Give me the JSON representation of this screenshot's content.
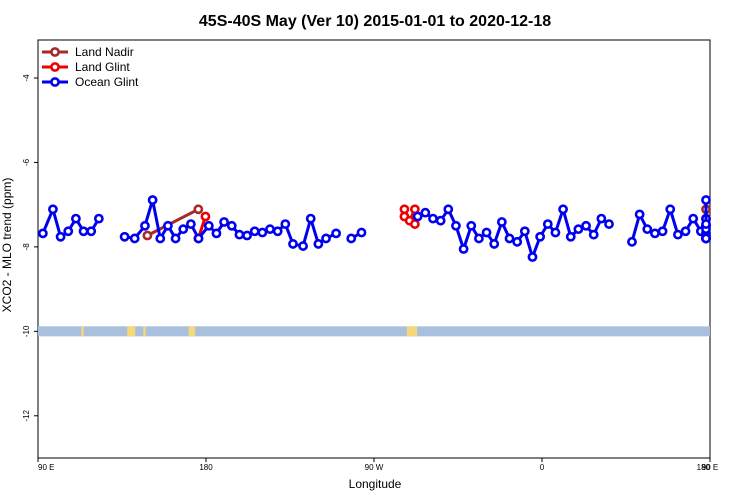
{
  "chart_data": {
    "type": "line",
    "title": "45S-40S May (Ver 10)   2015-01-01 to 2020-12-18",
    "xlabel": "Longitude",
    "ylabel": "XCO2 - MLO trend (ppm)",
    "xlim": [
      90,
      450
    ],
    "ylim": [
      -13.0,
      -3.1
    ],
    "x_ticks": [
      {
        "value": 90,
        "label": "90 E"
      },
      {
        "value": 180,
        "label": "180"
      },
      {
        "value": 270,
        "label": "90 W"
      },
      {
        "value": 360,
        "label": "0"
      },
      {
        "value": 450,
        "label": "90 E"
      },
      {
        "value": 540,
        "label": "180"
      }
    ],
    "y_ticks": [
      {
        "value": -4,
        "label": "-4"
      },
      {
        "value": -6,
        "label": "-6"
      },
      {
        "value": -8,
        "label": "-8"
      },
      {
        "value": -10,
        "label": "-10"
      },
      {
        "value": -12,
        "label": "-12"
      }
    ],
    "legend_position": "top-left",
    "grid": false,
    "land_ocean_band": {
      "y": -10,
      "ocean_color": "#a8bfdd",
      "land_color": "#f6d77a",
      "land_ranges": [
        [
          146.4,
          147.7
        ],
        [
          170.7,
          174.2
        ],
        [
          287.6,
          293.1
        ],
        [
          473.2,
          474.5
        ],
        [
          497.8,
          502.1
        ]
      ]
    },
    "series": [
      {
        "name": "Land Nadir",
        "color": "#a52a2a",
        "segments": [
          [
            [
              148.6,
              -7.73
            ],
            [
              175.9,
              -7.11
            ]
          ],
          [
            [
              487.5,
              -7.11
            ]
          ]
        ]
      },
      {
        "name": "Land Glint",
        "color": "#ee0000",
        "segments": [
          [
            [
              175.9,
              -7.8
            ],
            [
              179.7,
              -7.28
            ]
          ],
          [
            [
              286.3,
              -7.11
            ],
            [
              286.3,
              -7.28
            ],
            [
              289.1,
              -7.38
            ],
            [
              291.9,
              -7.11
            ],
            [
              291.9,
              -7.46
            ]
          ],
          [
            [
              476.6,
              -7.73
            ]
          ],
          [
            [
              488.8,
              -7.8
            ],
            [
              490.2,
              -7.33
            ]
          ]
        ]
      },
      {
        "name": "Ocean Glint",
        "color": "#0000ee",
        "segments": [
          [
            [
              92.6,
              -7.68
            ],
            [
              98.0,
              -7.11
            ],
            [
              102.1,
              -7.76
            ],
            [
              106.2,
              -7.63
            ],
            [
              110.3,
              -7.33
            ],
            [
              114.4,
              -7.63
            ],
            [
              118.5,
              -7.63
            ],
            [
              122.6,
              -7.33
            ]
          ],
          [
            [
              136.4,
              -7.76
            ],
            [
              141.8,
              -7.8
            ],
            [
              147.3,
              -7.5
            ],
            [
              151.4,
              -6.89
            ],
            [
              155.5,
              -7.8
            ],
            [
              159.6,
              -7.5
            ],
            [
              163.7,
              -7.8
            ],
            [
              167.8,
              -7.58
            ],
            [
              171.9,
              -7.46
            ],
            [
              176.0,
              -7.8
            ],
            [
              181.5,
              -7.5
            ],
            [
              185.6,
              -7.68
            ],
            [
              189.7,
              -7.41
            ],
            [
              193.8,
              -7.5
            ],
            [
              197.9,
              -7.71
            ],
            [
              202.0,
              -7.73
            ],
            [
              206.1,
              -7.63
            ],
            [
              210.2,
              -7.66
            ],
            [
              214.3,
              -7.58
            ],
            [
              218.4,
              -7.63
            ],
            [
              222.5,
              -7.46
            ],
            [
              226.6,
              -7.93
            ],
            [
              232.0,
              -7.98
            ],
            [
              236.1,
              -7.33
            ],
            [
              240.2,
              -7.93
            ],
            [
              244.3,
              -7.8
            ],
            [
              249.7,
              -7.68
            ]
          ],
          [
            [
              257.8,
              -7.8
            ],
            [
              263.3,
              -7.66
            ]
          ],
          [
            [
              293.4,
              -7.28
            ],
            [
              297.5,
              -7.19
            ],
            [
              301.6,
              -7.33
            ],
            [
              305.7,
              -7.38
            ],
            [
              309.8,
              -7.11
            ],
            [
              313.9,
              -7.5
            ],
            [
              318.0,
              -8.05
            ],
            [
              322.1,
              -7.5
            ],
            [
              326.2,
              -7.8
            ],
            [
              330.3,
              -7.66
            ],
            [
              334.4,
              -7.93
            ],
            [
              338.5,
              -7.41
            ],
            [
              342.6,
              -7.8
            ],
            [
              346.7,
              -7.88
            ],
            [
              350.8,
              -7.63
            ],
            [
              354.9,
              -8.24
            ],
            [
              359.0,
              -7.76
            ],
            [
              363.1,
              -7.46
            ],
            [
              367.2,
              -7.66
            ],
            [
              371.3,
              -7.11
            ],
            [
              375.4,
              -7.76
            ],
            [
              379.5,
              -7.58
            ],
            [
              383.6,
              -7.5
            ],
            [
              387.7,
              -7.71
            ],
            [
              391.8,
              -7.33
            ],
            [
              395.9,
              -7.46
            ]
          ],
          [
            [
              408.2,
              -7.88
            ],
            [
              412.3,
              -7.23
            ],
            [
              416.4,
              -7.58
            ],
            [
              420.5,
              -7.68
            ],
            [
              424.6,
              -7.63
            ],
            [
              428.7,
              -7.11
            ],
            [
              432.8,
              -7.71
            ],
            [
              436.9,
              -7.63
            ],
            [
              441.0,
              -7.33
            ],
            [
              445.1,
              -7.63
            ],
            [
              449.2,
              -7.66
            ],
            [
              453.3,
              -7.33
            ]
          ],
          [
            [
              464.2,
              -7.73
            ],
            [
              468.3,
              -7.8
            ],
            [
              472.4,
              -7.5
            ],
            [
              476.5,
              -6.89
            ],
            [
              480.6,
              -7.8
            ],
            [
              484.7,
              -7.5
            ],
            [
              488.8,
              -7.8
            ],
            [
              492.9,
              -7.58
            ],
            [
              497.0,
              -7.46
            ]
          ]
        ]
      }
    ]
  }
}
